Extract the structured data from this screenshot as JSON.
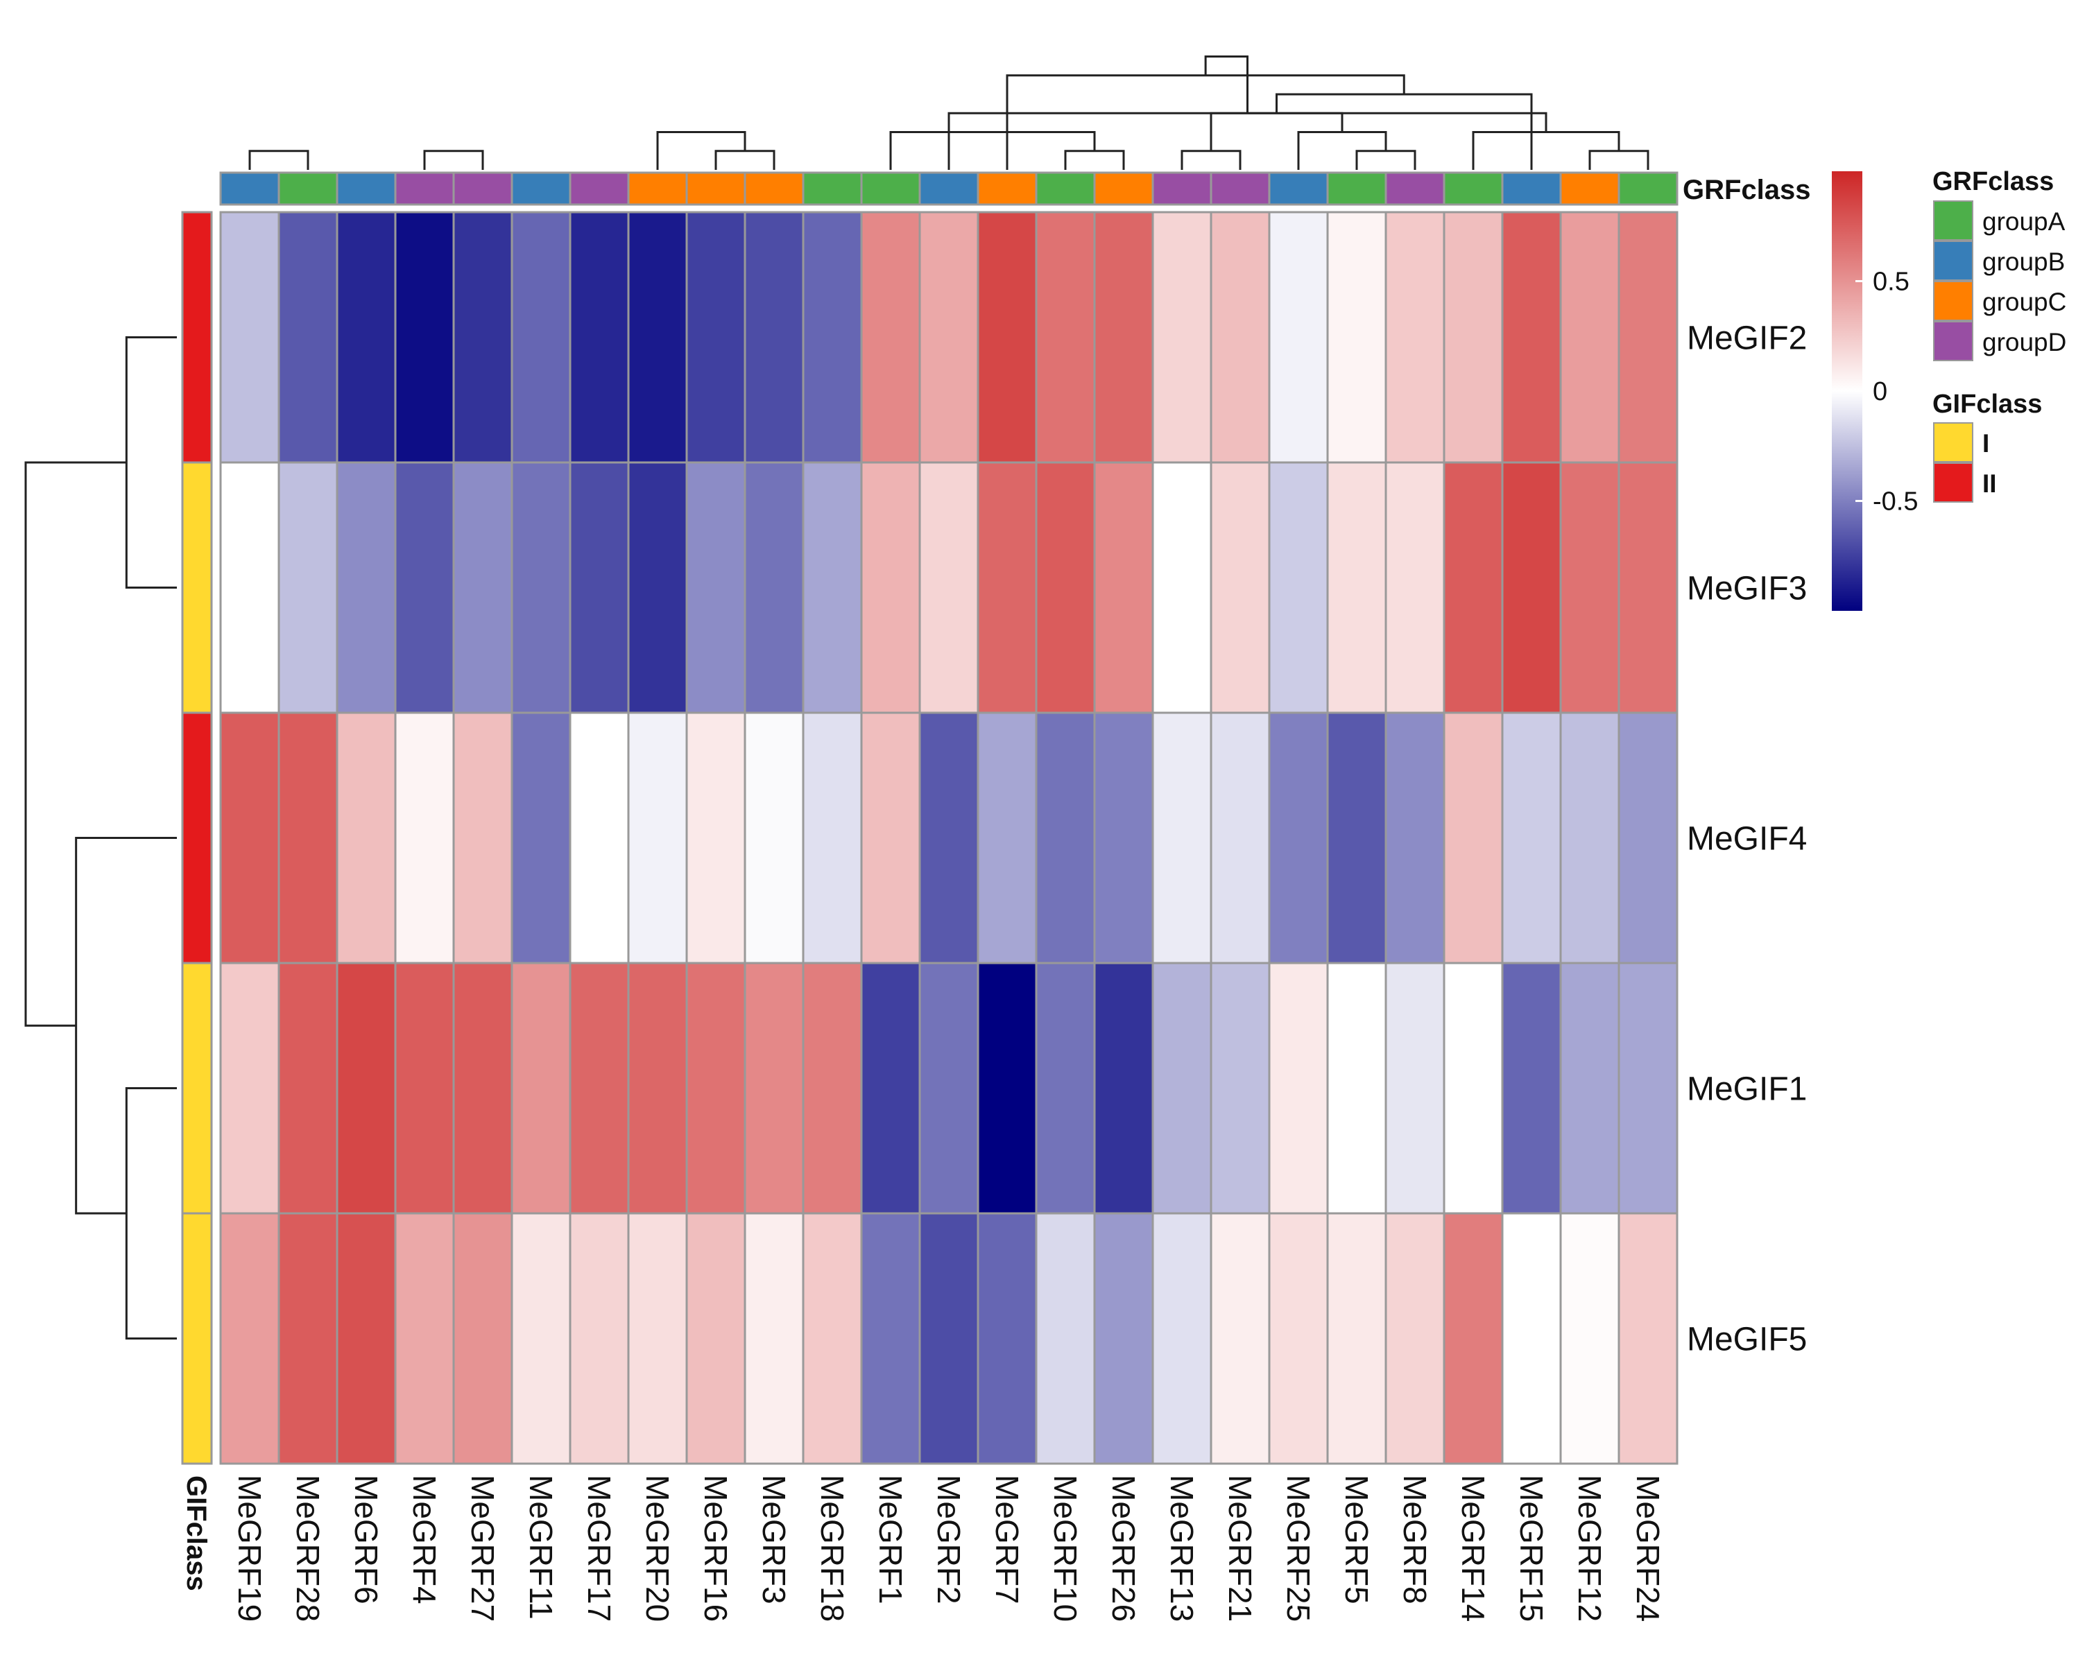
{
  "chart_data": {
    "type": "heatmap",
    "title": "",
    "rows": [
      "MeGIF2",
      "MeGIF3",
      "MeGIF4",
      "MeGIF1",
      "MeGIF5"
    ],
    "columns": [
      "MeGRF19",
      "MeGRF28",
      "MeGRF6",
      "MeGRF4",
      "MeGRF27",
      "MeGRF11",
      "MeGRF17",
      "MeGRF20",
      "MeGRF16",
      "MeGRF3",
      "MeGRF18",
      "MeGRF1",
      "MeGRF2",
      "MeGRF7",
      "MeGRF10",
      "MeGRF26",
      "MeGRF13",
      "MeGRF21",
      "MeGRF25",
      "MeGRF5",
      "MeGRF8",
      "MeGRF14",
      "MeGRF15",
      "MeGRF12",
      "MeGRF24"
    ],
    "values": [
      [
        -0.25,
        -0.65,
        -0.85,
        -0.95,
        -0.8,
        -0.6,
        -0.85,
        -0.9,
        -0.75,
        -0.7,
        -0.6,
        0.55,
        0.4,
        0.85,
        0.65,
        0.7,
        0.2,
        0.3,
        -0.05,
        0.05,
        0.25,
        0.3,
        0.75,
        0.45,
        0.6
      ],
      [
        0.0,
        -0.25,
        -0.45,
        -0.65,
        -0.45,
        -0.55,
        -0.7,
        -0.8,
        -0.45,
        -0.55,
        -0.35,
        0.35,
        0.2,
        0.7,
        0.75,
        0.55,
        0.0,
        0.2,
        -0.2,
        0.15,
        0.15,
        0.75,
        0.85,
        0.65,
        0.65
      ],
      [
        0.75,
        0.75,
        0.3,
        0.05,
        0.3,
        -0.55,
        0.0,
        -0.05,
        0.1,
        -0.02,
        -0.12,
        0.3,
        -0.65,
        -0.35,
        -0.55,
        -0.5,
        -0.08,
        -0.12,
        -0.5,
        -0.65,
        -0.45,
        0.3,
        -0.2,
        -0.25,
        -0.4
      ],
      [
        0.25,
        0.75,
        0.85,
        0.75,
        0.75,
        0.5,
        0.7,
        0.7,
        0.65,
        0.55,
        0.6,
        -0.75,
        -0.55,
        -1.0,
        -0.55,
        -0.8,
        -0.3,
        -0.25,
        0.1,
        0.0,
        -0.1,
        0.0,
        -0.6,
        -0.35,
        -0.35
      ],
      [
        0.45,
        0.75,
        0.8,
        0.4,
        0.5,
        0.12,
        0.2,
        0.15,
        0.3,
        0.08,
        0.25,
        -0.55,
        -0.7,
        -0.6,
        -0.15,
        -0.4,
        -0.12,
        0.08,
        0.15,
        0.1,
        0.2,
        0.6,
        0.0,
        0.02,
        0.25
      ]
    ],
    "col_annotation": {
      "name": "GRFclass",
      "values": [
        "groupB",
        "groupA",
        "groupB",
        "groupD",
        "groupD",
        "groupB",
        "groupD",
        "groupC",
        "groupC",
        "groupC",
        "groupA",
        "groupA",
        "groupB",
        "groupC",
        "groupA",
        "groupC",
        "groupD",
        "groupD",
        "groupB",
        "groupA",
        "groupD",
        "groupA",
        "groupB",
        "groupC",
        "groupA"
      ]
    },
    "row_annotation": {
      "name": "GIFclass",
      "values": [
        "II",
        "I",
        "II",
        "I",
        "I"
      ]
    },
    "colorbar": {
      "range": [
        -1,
        1
      ],
      "ticks": [
        0.5,
        0,
        -0.5
      ],
      "tick_labels": [
        "0.5",
        "0",
        "-0.5"
      ]
    },
    "legends": [
      {
        "title": "GRFclass",
        "entries": [
          "groupA",
          "groupB",
          "groupC",
          "groupD"
        ]
      },
      {
        "title": "GIFclass",
        "entries": [
          "I",
          "II"
        ]
      }
    ],
    "row_dendrogram": [
      [
        0,
        1
      ],
      [
        3,
        4
      ],
      [
        2,
        6
      ],
      [
        5,
        7
      ]
    ],
    "col_dendrogram": [
      [
        3,
        4
      ],
      [
        8,
        9
      ],
      [
        7,
        26
      ],
      [
        29,
        10
      ],
      [
        6,
        30
      ],
      [
        5,
        31
      ],
      [
        25,
        32
      ],
      [
        0,
        1
      ],
      [
        33,
        2
      ],
      [
        16,
        17
      ],
      [
        19,
        20
      ],
      [
        18,
        35
      ],
      [
        34,
        36
      ],
      [
        23,
        24
      ],
      [
        22,
        37
      ],
      [
        21,
        38
      ],
      [
        14,
        15
      ],
      [
        39,
        13
      ],
      [
        40,
        12
      ],
      [
        41,
        11
      ],
      [
        42,
        43
      ]
    ]
  },
  "colors": {
    "groupA": "#4DAF4A",
    "groupB": "#377EB8",
    "groupC": "#FF7F00",
    "groupD": "#984EA3",
    "I": "#FFD92F",
    "II": "#E41A1C",
    "low": "#000080",
    "mid": "#FFFFFF",
    "high": "#CD2626"
  }
}
